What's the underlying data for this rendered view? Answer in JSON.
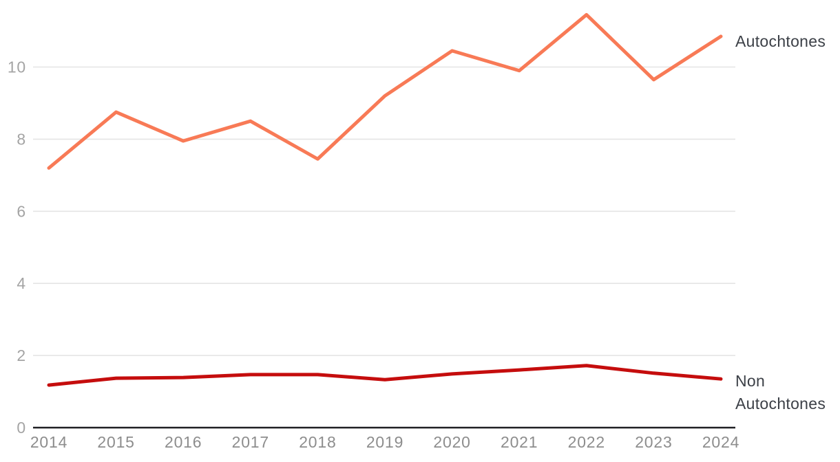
{
  "chart_data": {
    "type": "line",
    "title": "",
    "xlabel": "",
    "ylabel": "",
    "x": [
      2014,
      2015,
      2016,
      2017,
      2018,
      2019,
      2020,
      2021,
      2022,
      2023,
      2024
    ],
    "series": [
      {
        "name": "Autochtones",
        "color": "#f87a56",
        "values": [
          7.2,
          8.75,
          7.95,
          8.5,
          7.45,
          9.2,
          10.45,
          9.9,
          11.45,
          9.65,
          10.85
        ]
      },
      {
        "name": "Non Autochtones",
        "color": "#c50d0d",
        "values": [
          1.18,
          1.37,
          1.39,
          1.47,
          1.47,
          1.33,
          1.49,
          1.6,
          1.72,
          1.51,
          1.35
        ]
      }
    ],
    "yticks": [
      0,
      2,
      4,
      6,
      8,
      10
    ],
    "ylim": [
      0,
      11.86
    ],
    "grid": true,
    "legend_position": "right-of-line-ends"
  },
  "colors": {
    "background": "#ffffff",
    "gridline": "#e4e4e4",
    "axis_line": "#1f1f23",
    "y_tick_text": "#a4a4a4",
    "x_tick_text": "#8d8d8d",
    "series_label_text": "#3c4047"
  }
}
